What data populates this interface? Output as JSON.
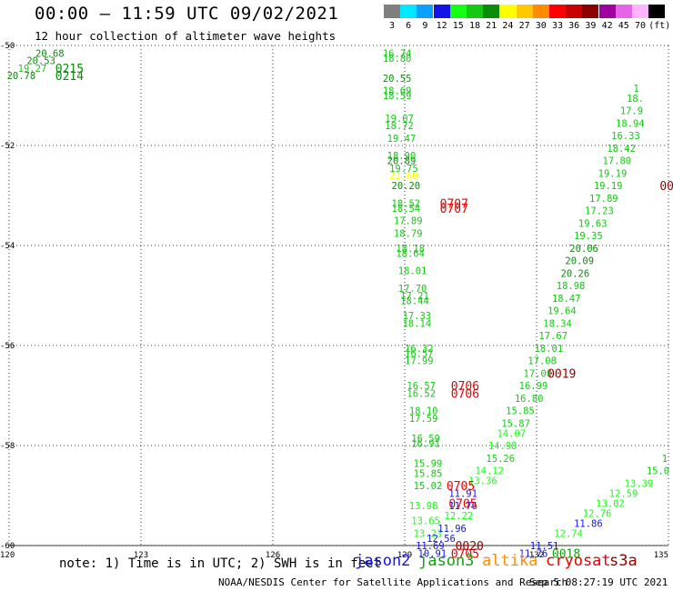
{
  "title": "00:00 — 11:59 UTC 09/02/2021",
  "subtitle": "12 hour collection of altimeter wave heights",
  "legend": {
    "unit": "(ft)",
    "bins": [
      {
        "label": "3",
        "color": "#7f7f7f"
      },
      {
        "label": "6",
        "color": "#00e8ff"
      },
      {
        "label": "9",
        "color": "#0aa0ff"
      },
      {
        "label": "12",
        "color": "#1414e6"
      },
      {
        "label": "15",
        "color": "#14ff14"
      },
      {
        "label": "18",
        "color": "#14c814"
      },
      {
        "label": "21",
        "color": "#0a8c0a"
      },
      {
        "label": "24",
        "color": "#ffff00"
      },
      {
        "label": "27",
        "color": "#ffc800"
      },
      {
        "label": "30",
        "color": "#ff8c00"
      },
      {
        "label": "33",
        "color": "#ff0000"
      },
      {
        "label": "36",
        "color": "#c80000"
      },
      {
        "label": "39",
        "color": "#8c0000"
      },
      {
        "label": "42",
        "color": "#a000a0"
      },
      {
        "label": "45",
        "color": "#e664e6"
      },
      {
        "label": "70",
        "color": "#ffb4ff"
      },
      {
        "label": "(ft)",
        "color": "#000000"
      }
    ]
  },
  "axes": {
    "lon_range": [
      120,
      135
    ],
    "lat_range": [
      -60,
      -50
    ],
    "lon_ticks": [
      "120",
      "123",
      "126",
      "129",
      "132",
      "135"
    ],
    "lat_ticks": [
      "-50",
      "-52",
      "-54",
      "-56",
      "-58",
      "-60"
    ]
  },
  "note": "note: 1) Time is in UTC; 2) SWH is in feet",
  "satellites": [
    {
      "name": "jason2",
      "color": "#1414e6"
    },
    {
      "name": "jason3",
      "color": "#14a014"
    },
    {
      "name": "altika",
      "color": "#ff8c00"
    },
    {
      "name": "cryosat",
      "color": "#e60000"
    },
    {
      "name": "s3a",
      "color": "#8c0000"
    }
  ],
  "footer": "NOAA/NESDIS Center for Satellite Applications and Research",
  "timestamp": "Sep  5 08:27:19 UTC 2021",
  "chart_data": {
    "type": "scatter",
    "grid": true,
    "wave_labels": [
      {
        "text": "20.68",
        "lon": 120.6,
        "lat": -50.15,
        "color": "#0a8c0a"
      },
      {
        "text": "20.53",
        "lon": 120.4,
        "lat": -50.3,
        "color": "#0a8c0a"
      },
      {
        "text": "19.27",
        "lon": 120.2,
        "lat": -50.45,
        "color": "#14c814"
      },
      {
        "text": "20.78",
        "lon": 119.95,
        "lat": -50.6,
        "color": "#0a8c0a"
      },
      {
        "text": "16.74",
        "lon": 128.5,
        "lat": -50.15,
        "color": "#14c814"
      },
      {
        "text": "18.80",
        "lon": 128.5,
        "lat": -50.25,
        "color": "#14c814"
      },
      {
        "text": "20.55",
        "lon": 128.5,
        "lat": -50.65,
        "color": "#0a8c0a"
      },
      {
        "text": "18.69",
        "lon": 128.5,
        "lat": -50.9,
        "color": "#14c814"
      },
      {
        "text": "18.59",
        "lon": 128.5,
        "lat": -51.0,
        "color": "#14c814"
      },
      {
        "text": "19.07",
        "lon": 128.55,
        "lat": -51.45,
        "color": "#14c814"
      },
      {
        "text": "18.72",
        "lon": 128.55,
        "lat": -51.6,
        "color": "#14c814"
      },
      {
        "text": "19.47",
        "lon": 128.6,
        "lat": -51.85,
        "color": "#14c814"
      },
      {
        "text": "18.90",
        "lon": 128.6,
        "lat": -52.2,
        "color": "#14c814"
      },
      {
        "text": "20.89",
        "lon": 128.6,
        "lat": -52.3,
        "color": "#0a8c0a"
      },
      {
        "text": "19.75",
        "lon": 128.65,
        "lat": -52.45,
        "color": "#14c814"
      },
      {
        "text": "21.60",
        "lon": 128.65,
        "lat": -52.6,
        "color": "#ffff00"
      },
      {
        "text": "20.20",
        "lon": 128.7,
        "lat": -52.8,
        "color": "#0a8c0a"
      },
      {
        "text": "18.52",
        "lon": 128.7,
        "lat": -53.15,
        "color": "#14c814"
      },
      {
        "text": "18.54",
        "lon": 128.7,
        "lat": -53.25,
        "color": "#14c814"
      },
      {
        "text": "17.89",
        "lon": 128.75,
        "lat": -53.5,
        "color": "#14c814"
      },
      {
        "text": "18.79",
        "lon": 128.75,
        "lat": -53.75,
        "color": "#14c814"
      },
      {
        "text": "18.18",
        "lon": 128.8,
        "lat": -54.05,
        "color": "#14c814"
      },
      {
        "text": "18.64",
        "lon": 128.8,
        "lat": -54.15,
        "color": "#14c814"
      },
      {
        "text": "18.01",
        "lon": 128.85,
        "lat": -54.5,
        "color": "#14c814"
      },
      {
        "text": "17.70",
        "lon": 128.85,
        "lat": -54.85,
        "color": "#14c814"
      },
      {
        "text": "17.21",
        "lon": 128.9,
        "lat": -55.0,
        "color": "#14c814"
      },
      {
        "text": "18.44",
        "lon": 128.9,
        "lat": -55.1,
        "color": "#14c814"
      },
      {
        "text": "17.33",
        "lon": 128.95,
        "lat": -55.4,
        "color": "#14c814"
      },
      {
        "text": "18.14",
        "lon": 128.95,
        "lat": -55.55,
        "color": "#14c814"
      },
      {
        "text": "16.32",
        "lon": 129.0,
        "lat": -56.05,
        "color": "#14c814"
      },
      {
        "text": "16.57",
        "lon": 129.0,
        "lat": -56.15,
        "color": "#14c814"
      },
      {
        "text": "17.99",
        "lon": 129.0,
        "lat": -56.3,
        "color": "#14c814"
      },
      {
        "text": "16.57",
        "lon": 129.05,
        "lat": -56.8,
        "color": "#14c814"
      },
      {
        "text": "16.52",
        "lon": 129.05,
        "lat": -56.95,
        "color": "#14c814"
      },
      {
        "text": "18.10",
        "lon": 129.1,
        "lat": -57.3,
        "color": "#14c814"
      },
      {
        "text": "17.59",
        "lon": 129.1,
        "lat": -57.45,
        "color": "#14c814"
      },
      {
        "text": "16.59",
        "lon": 129.15,
        "lat": -57.85,
        "color": "#14c814"
      },
      {
        "text": "16.91",
        "lon": 129.15,
        "lat": -57.95,
        "color": "#14c814"
      },
      {
        "text": "15.99",
        "lon": 129.2,
        "lat": -58.35,
        "color": "#14c814"
      },
      {
        "text": "15.85",
        "lon": 129.2,
        "lat": -58.55,
        "color": "#14c814"
      },
      {
        "text": "15.02",
        "lon": 129.2,
        "lat": -58.8,
        "color": "#14c814"
      },
      {
        "text": "13.98",
        "lon": 129.1,
        "lat": -59.2,
        "color": "#14ff14"
      },
      {
        "text": "13.65",
        "lon": 129.15,
        "lat": -59.5,
        "color": "#14ff14"
      },
      {
        "text": "13.23",
        "lon": 129.2,
        "lat": -59.75,
        "color": "#14ff14"
      },
      {
        "text": "11.69",
        "lon": 129.25,
        "lat": -60.0,
        "color": "#1414e6"
      },
      {
        "text": "10.91",
        "lon": 129.3,
        "lat": -60.15,
        "color": "#1414e6"
      },
      {
        "text": "12.56",
        "lon": 129.5,
        "lat": -59.85,
        "color": "#1414e6"
      },
      {
        "text": "11.96",
        "lon": 129.75,
        "lat": -59.65,
        "color": "#1414e6"
      },
      {
        "text": "12.22",
        "lon": 129.9,
        "lat": -59.4,
        "color": "#14ff14"
      },
      {
        "text": "11.76",
        "lon": 130.0,
        "lat": -59.2,
        "color": "#1414e6"
      },
      {
        "text": "11.91",
        "lon": 130.0,
        "lat": -58.95,
        "color": "#1414e6"
      },
      {
        "text": "13.36",
        "lon": 130.45,
        "lat": -58.7,
        "color": "#14ff14"
      },
      {
        "text": "14.12",
        "lon": 130.6,
        "lat": -58.5,
        "color": "#14ff14"
      },
      {
        "text": "15.26",
        "lon": 130.85,
        "lat": -58.25,
        "color": "#14c814"
      },
      {
        "text": "14.98",
        "lon": 130.9,
        "lat": -58.0,
        "color": "#14ff14"
      },
      {
        "text": "14.07",
        "lon": 131.1,
        "lat": -57.75,
        "color": "#14ff14"
      },
      {
        "text": "15.87",
        "lon": 131.2,
        "lat": -57.55,
        "color": "#14c814"
      },
      {
        "text": "15.85",
        "lon": 131.3,
        "lat": -57.3,
        "color": "#14c814"
      },
      {
        "text": "16.80",
        "lon": 131.5,
        "lat": -57.05,
        "color": "#14c814"
      },
      {
        "text": "16.99",
        "lon": 131.6,
        "lat": -56.8,
        "color": "#14c814"
      },
      {
        "text": "17.00",
        "lon": 131.7,
        "lat": -56.55,
        "color": "#14c814"
      },
      {
        "text": "17.08",
        "lon": 131.8,
        "lat": -56.3,
        "color": "#14c814"
      },
      {
        "text": "18.01",
        "lon": 131.95,
        "lat": -56.05,
        "color": "#14c814"
      },
      {
        "text": "17.67",
        "lon": 132.05,
        "lat": -55.8,
        "color": "#14c814"
      },
      {
        "text": "18.34",
        "lon": 132.15,
        "lat": -55.55,
        "color": "#14c814"
      },
      {
        "text": "19.64",
        "lon": 132.25,
        "lat": -55.3,
        "color": "#14c814"
      },
      {
        "text": "18.47",
        "lon": 132.35,
        "lat": -55.05,
        "color": "#14c814"
      },
      {
        "text": "18.98",
        "lon": 132.45,
        "lat": -54.8,
        "color": "#14c814"
      },
      {
        "text": "20.26",
        "lon": 132.55,
        "lat": -54.55,
        "color": "#0a8c0a"
      },
      {
        "text": "20.09",
        "lon": 132.65,
        "lat": -54.3,
        "color": "#0a8c0a"
      },
      {
        "text": "20.06",
        "lon": 132.75,
        "lat": -54.05,
        "color": "#0a8c0a"
      },
      {
        "text": "19.35",
        "lon": 132.85,
        "lat": -53.8,
        "color": "#14c814"
      },
      {
        "text": "19.63",
        "lon": 132.95,
        "lat": -53.55,
        "color": "#14c814"
      },
      {
        "text": "17.23",
        "lon": 133.1,
        "lat": -53.3,
        "color": "#14c814"
      },
      {
        "text": "17.89",
        "lon": 133.2,
        "lat": -53.05,
        "color": "#14c814"
      },
      {
        "text": "19.19",
        "lon": 133.3,
        "lat": -52.8,
        "color": "#14c814"
      },
      {
        "text": "19.19",
        "lon": 133.4,
        "lat": -52.55,
        "color": "#14c814"
      },
      {
        "text": "17.80",
        "lon": 133.5,
        "lat": -52.3,
        "color": "#14c814"
      },
      {
        "text": "18.42",
        "lon": 133.6,
        "lat": -52.05,
        "color": "#14c814"
      },
      {
        "text": "16.33",
        "lon": 133.7,
        "lat": -51.8,
        "color": "#14c814"
      },
      {
        "text": "18.94",
        "lon": 133.8,
        "lat": -51.55,
        "color": "#14c814"
      },
      {
        "text": "17.9",
        "lon": 133.9,
        "lat": -51.3,
        "color": "#14c814"
      },
      {
        "text": "18.",
        "lon": 134.05,
        "lat": -51.05,
        "color": "#14c814"
      },
      {
        "text": "1",
        "lon": 134.2,
        "lat": -50.85,
        "color": "#14c814"
      },
      {
        "text": "11.76",
        "lon": 131.6,
        "lat": -60.15,
        "color": "#1414e6"
      },
      {
        "text": "11.51",
        "lon": 131.85,
        "lat": -60.0,
        "color": "#1414e6"
      },
      {
        "text": "12.74",
        "lon": 132.4,
        "lat": -59.75,
        "color": "#14ff14"
      },
      {
        "text": "11.86",
        "lon": 132.85,
        "lat": -59.55,
        "color": "#1414e6"
      },
      {
        "text": "12.76",
        "lon": 133.05,
        "lat": -59.35,
        "color": "#14ff14"
      },
      {
        "text": "13.02",
        "lon": 133.35,
        "lat": -59.15,
        "color": "#14ff14"
      },
      {
        "text": "12.59",
        "lon": 133.65,
        "lat": -58.95,
        "color": "#14ff14"
      },
      {
        "text": "13.39",
        "lon": 134.0,
        "lat": -58.75,
        "color": "#14ff14"
      },
      {
        "text": "15.0",
        "lon": 134.5,
        "lat": -58.5,
        "color": "#14c814"
      },
      {
        "text": "1",
        "lon": 134.85,
        "lat": -58.25,
        "color": "#14c814"
      }
    ],
    "time_labels": [
      {
        "text": "0215",
        "lon": 121.05,
        "lat": -50.45,
        "color": "#0a8c0a"
      },
      {
        "text": "0214",
        "lon": 121.05,
        "lat": -50.6,
        "color": "#0a8c0a"
      },
      {
        "text": "0707",
        "lon": 129.8,
        "lat": -53.15,
        "color": "#e60000"
      },
      {
        "text": "0707",
        "lon": 129.8,
        "lat": -53.25,
        "color": "#e60000"
      },
      {
        "text": "0706",
        "lon": 130.05,
        "lat": -56.8,
        "color": "#e60000"
      },
      {
        "text": "0706",
        "lon": 130.05,
        "lat": -56.95,
        "color": "#e60000"
      },
      {
        "text": "0019",
        "lon": 132.25,
        "lat": -56.55,
        "color": "#8c0000"
      },
      {
        "text": "00",
        "lon": 134.8,
        "lat": -52.8,
        "color": "#8c0000"
      },
      {
        "text": "0705",
        "lon": 129.95,
        "lat": -58.8,
        "color": "#e60000"
      },
      {
        "text": "0705",
        "lon": 130.0,
        "lat": -59.15,
        "color": "#e60000"
      },
      {
        "text": "0020",
        "lon": 130.15,
        "lat": -60.0,
        "color": "#8c0000"
      },
      {
        "text": "0705",
        "lon": 130.05,
        "lat": -60.15,
        "color": "#e60000"
      },
      {
        "text": "0018",
        "lon": 132.35,
        "lat": -60.15,
        "color": "#14a014"
      }
    ]
  }
}
